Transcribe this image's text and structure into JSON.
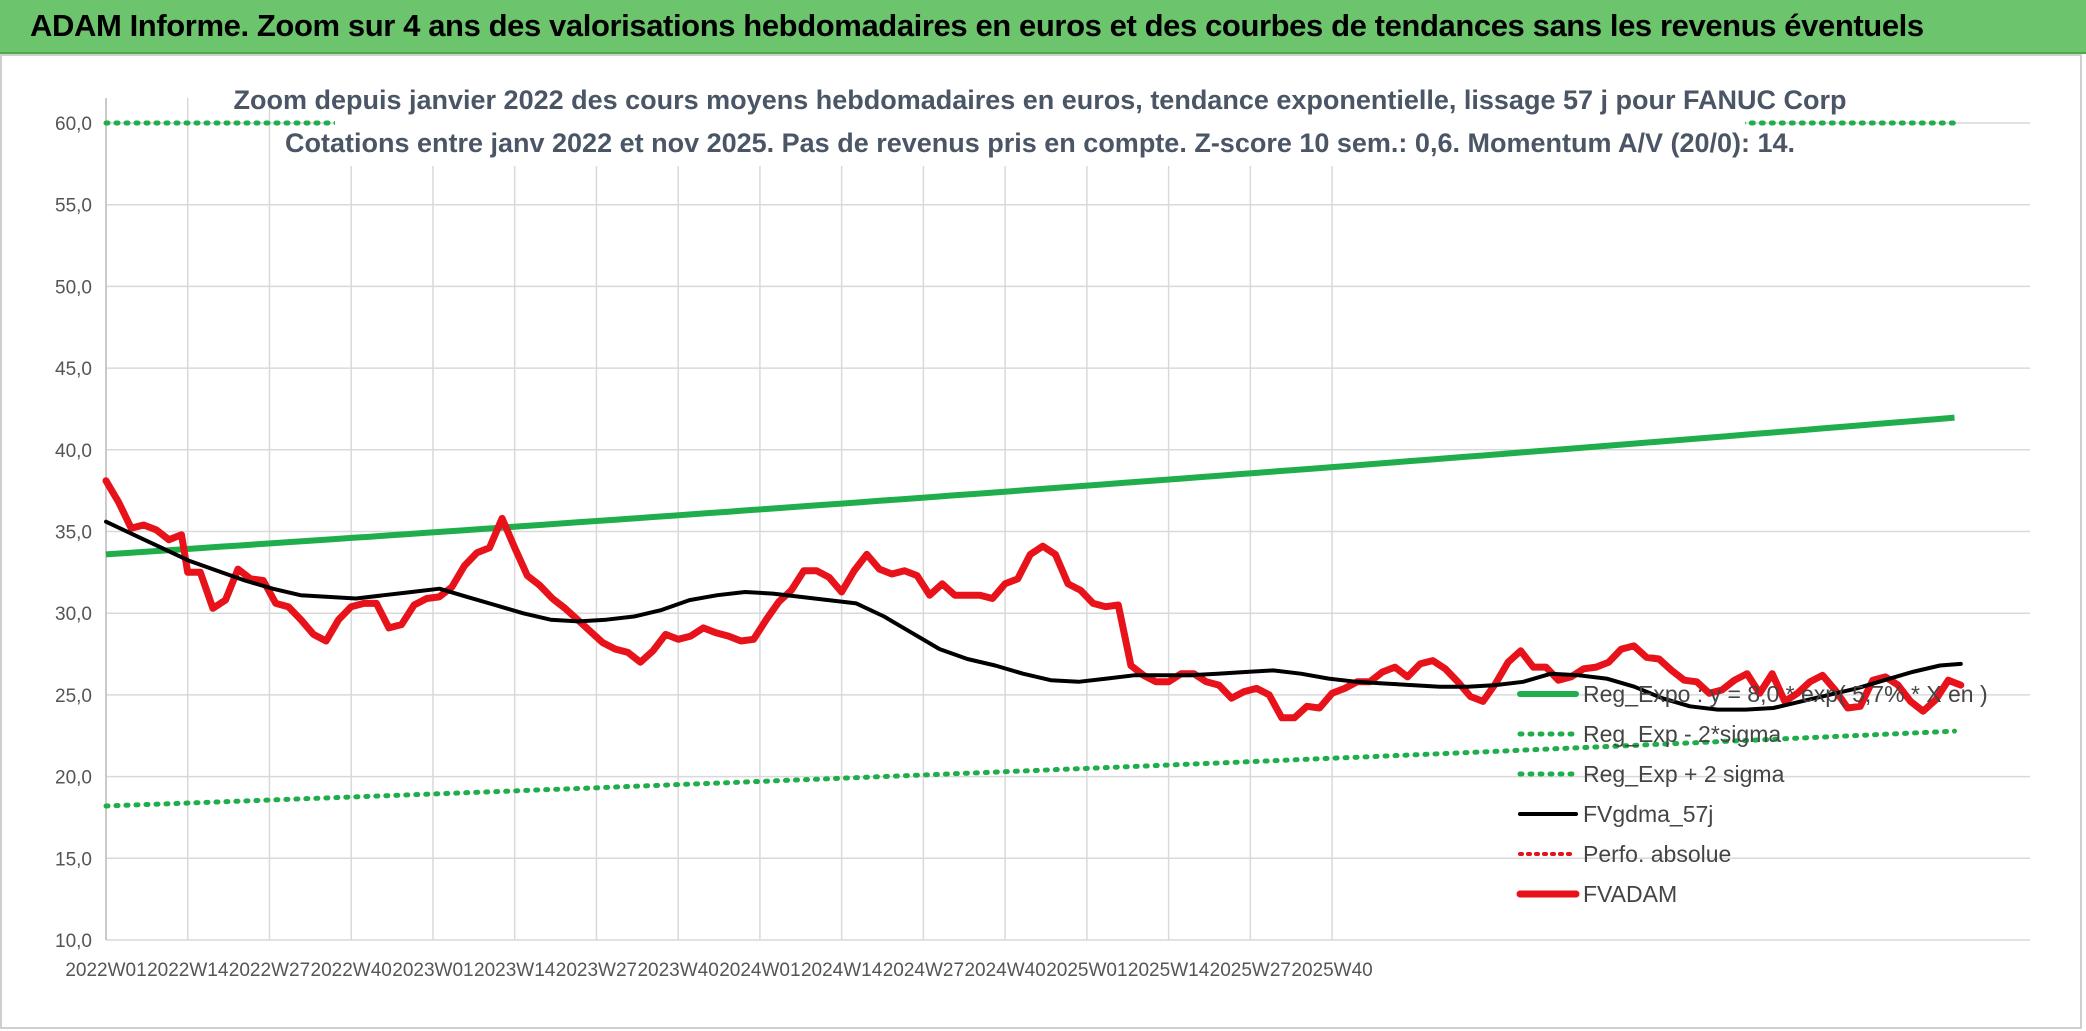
{
  "header": {
    "title": "ADAM Informe. Zoom sur 4 ans des valorisations hebdomadaires en euros et des courbes de tendances sans les revenus éventuels"
  },
  "colors": {
    "banner": "#6cc46c",
    "reg_expo": "#1fae4b",
    "reg_sigma": "#1fae4b",
    "fvgdma": "#000000",
    "perfo": "#e0141e",
    "fvadam": "#e8121a",
    "grid": "#d9d9d9"
  },
  "chart_data": {
    "type": "line",
    "title_lines": [
      "Zoom depuis janvier 2022 des cours moyens hebdomadaires en euros, tendance exponentielle, lissage 57 j pour FANUC Corp",
      "Cotations entre janv 2022 et nov 2025. Pas de revenus pris en compte. Z-score 10 sem.: 0,6. Momentum A/V (20/0): 14."
    ],
    "ylim": [
      10,
      60
    ],
    "y_ticks": [
      "10,0",
      "15,0",
      "20,0",
      "25,0",
      "30,0",
      "35,0",
      "40,0",
      "45,0",
      "50,0",
      "55,0",
      "60,0"
    ],
    "x_ticks": [
      "2022W01",
      "2022W14",
      "2022W27",
      "2022W40",
      "2023W01",
      "2023W14",
      "2023W27",
      "2023W40",
      "2024W01",
      "2024W14",
      "2024W27",
      "2024W40",
      "2025W01",
      "2025W14",
      "2025W27",
      "2025W40"
    ],
    "week_count": 206,
    "legend": [
      {
        "key": "reg_expo",
        "label": "Reg_Expo : y = 8,0 * exp( 5,7% * X en )",
        "style": "solid-thick"
      },
      {
        "key": "reg_minus",
        "label": "Reg_Exp - 2*sigma",
        "style": "dotted-green"
      },
      {
        "key": "reg_plus",
        "label": "Reg_Exp + 2 sigma",
        "style": "dotted-green"
      },
      {
        "key": "fvgdma",
        "label": "FVgdma_57j",
        "style": "solid-black"
      },
      {
        "key": "perfo",
        "label": "Perfo. absolue",
        "style": "dotted-red"
      },
      {
        "key": "fvadam",
        "label": "FVADAM",
        "style": "solid-red"
      }
    ],
    "series": [
      {
        "name": "Reg_Expo",
        "start": 33.6,
        "end": 42.0
      },
      {
        "name": "Reg_Exp - 2*sigma",
        "start": 18.2,
        "end": 22.8
      },
      {
        "name": "Reg_Exp + 2 sigma",
        "start": 60.0,
        "end": 60.0
      },
      {
        "name": "FVgdma_57j",
        "points": [
          [
            0,
            35.6
          ],
          [
            4,
            34.8
          ],
          [
            8,
            34.0
          ],
          [
            12,
            33.2
          ],
          [
            16,
            32.6
          ],
          [
            20,
            32.0
          ],
          [
            24,
            31.5
          ],
          [
            28,
            31.1
          ],
          [
            32,
            31.0
          ],
          [
            36,
            30.9
          ],
          [
            40,
            31.1
          ],
          [
            44,
            31.3
          ],
          [
            48,
            31.5
          ],
          [
            52,
            31.0
          ],
          [
            56,
            30.5
          ],
          [
            60,
            30.0
          ],
          [
            64,
            29.6
          ],
          [
            68,
            29.5
          ],
          [
            72,
            29.6
          ],
          [
            76,
            29.8
          ],
          [
            80,
            30.2
          ],
          [
            84,
            30.8
          ],
          [
            88,
            31.1
          ],
          [
            92,
            31.3
          ],
          [
            96,
            31.2
          ],
          [
            100,
            31.0
          ],
          [
            104,
            30.8
          ],
          [
            108,
            30.6
          ],
          [
            112,
            29.8
          ],
          [
            116,
            28.8
          ],
          [
            120,
            27.8
          ],
          [
            124,
            27.2
          ],
          [
            128,
            26.8
          ],
          [
            132,
            26.3
          ],
          [
            136,
            25.9
          ],
          [
            140,
            25.8
          ],
          [
            144,
            26.0
          ],
          [
            148,
            26.2
          ],
          [
            152,
            26.2
          ],
          [
            156,
            26.2
          ],
          [
            160,
            26.3
          ],
          [
            164,
            26.4
          ],
          [
            168,
            26.5
          ],
          [
            172,
            26.3
          ],
          [
            176,
            26.0
          ],
          [
            180,
            25.8
          ],
          [
            184,
            25.7
          ],
          [
            188,
            25.6
          ],
          [
            192,
            25.5
          ],
          [
            196,
            25.5
          ],
          [
            200,
            25.6
          ],
          [
            204,
            25.8
          ],
          [
            208,
            26.3
          ],
          [
            212,
            26.2
          ],
          [
            216,
            26.0
          ],
          [
            220,
            25.5
          ],
          [
            224,
            24.8
          ],
          [
            228,
            24.3
          ],
          [
            232,
            24.1
          ],
          [
            236,
            24.1
          ],
          [
            240,
            24.2
          ],
          [
            244,
            24.6
          ],
          [
            248,
            25.0
          ],
          [
            252,
            25.4
          ],
          [
            256,
            25.9
          ],
          [
            260,
            26.4
          ],
          [
            264,
            26.8
          ],
          [
            267,
            26.9
          ]
        ]
      },
      {
        "name": "Perfo. absolue",
        "points": []
      },
      {
        "name": "FVADAM",
        "points": [
          [
            0,
            38.1
          ],
          [
            2,
            36.8
          ],
          [
            4,
            35.2
          ],
          [
            6,
            35.4
          ],
          [
            8,
            35.1
          ],
          [
            10,
            34.5
          ],
          [
            12,
            34.8
          ],
          [
            13,
            32.5
          ],
          [
            15,
            32.5
          ],
          [
            17,
            30.3
          ],
          [
            19,
            30.8
          ],
          [
            21,
            32.7
          ],
          [
            23,
            32.1
          ],
          [
            25,
            32.0
          ],
          [
            27,
            30.6
          ],
          [
            29,
            30.4
          ],
          [
            31,
            29.6
          ],
          [
            33,
            28.7
          ],
          [
            35,
            28.3
          ],
          [
            37,
            29.6
          ],
          [
            39,
            30.4
          ],
          [
            41,
            30.6
          ],
          [
            43,
            30.6
          ],
          [
            45,
            29.1
          ],
          [
            47,
            29.3
          ],
          [
            49,
            30.5
          ],
          [
            51,
            30.9
          ],
          [
            53,
            31.0
          ],
          [
            55,
            31.6
          ],
          [
            57,
            32.9
          ],
          [
            59,
            33.7
          ],
          [
            61,
            34.0
          ],
          [
            63,
            35.8
          ],
          [
            65,
            34.0
          ],
          [
            67,
            32.3
          ],
          [
            69,
            31.7
          ],
          [
            71,
            30.9
          ],
          [
            73,
            30.3
          ],
          [
            75,
            29.6
          ],
          [
            77,
            28.9
          ],
          [
            79,
            28.2
          ],
          [
            81,
            27.8
          ],
          [
            83,
            27.6
          ],
          [
            85,
            27.0
          ],
          [
            87,
            27.7
          ],
          [
            89,
            28.7
          ],
          [
            91,
            28.4
          ],
          [
            93,
            28.6
          ],
          [
            95,
            29.1
          ],
          [
            97,
            28.8
          ],
          [
            99,
            28.6
          ],
          [
            101,
            28.3
          ],
          [
            103,
            28.4
          ],
          [
            105,
            29.6
          ],
          [
            107,
            30.7
          ],
          [
            109,
            31.4
          ],
          [
            111,
            32.6
          ],
          [
            113,
            32.6
          ],
          [
            115,
            32.2
          ],
          [
            117,
            31.3
          ],
          [
            119,
            32.6
          ],
          [
            121,
            33.6
          ],
          [
            123,
            32.7
          ],
          [
            125,
            32.4
          ],
          [
            127,
            32.6
          ],
          [
            129,
            32.3
          ],
          [
            131,
            31.1
          ],
          [
            133,
            31.8
          ],
          [
            135,
            31.1
          ],
          [
            137,
            31.1
          ],
          [
            139,
            31.1
          ],
          [
            141,
            30.9
          ],
          [
            143,
            31.8
          ],
          [
            145,
            32.1
          ],
          [
            147,
            33.6
          ],
          [
            149,
            34.1
          ],
          [
            151,
            33.6
          ],
          [
            153,
            31.8
          ],
          [
            155,
            31.4
          ],
          [
            157,
            30.6
          ],
          [
            159,
            30.4
          ],
          [
            161,
            30.5
          ],
          [
            163,
            26.8
          ],
          [
            165,
            26.2
          ],
          [
            167,
            25.8
          ],
          [
            169,
            25.8
          ],
          [
            171,
            26.3
          ],
          [
            173,
            26.3
          ],
          [
            175,
            25.8
          ],
          [
            177,
            25.6
          ],
          [
            179,
            24.8
          ],
          [
            181,
            25.2
          ],
          [
            183,
            25.4
          ],
          [
            185,
            25.0
          ],
          [
            187,
            23.6
          ],
          [
            189,
            23.6
          ],
          [
            191,
            24.3
          ],
          [
            193,
            24.2
          ],
          [
            195,
            25.1
          ],
          [
            197,
            25.4
          ],
          [
            199,
            25.8
          ],
          [
            201,
            25.8
          ],
          [
            203,
            26.4
          ],
          [
            205,
            26.7
          ],
          [
            207,
            26.1
          ],
          [
            209,
            26.9
          ],
          [
            211,
            27.1
          ],
          [
            213,
            26.6
          ],
          [
            215,
            25.8
          ],
          [
            217,
            24.9
          ],
          [
            219,
            24.6
          ],
          [
            221,
            25.7
          ],
          [
            223,
            27.0
          ],
          [
            225,
            27.7
          ],
          [
            227,
            26.7
          ],
          [
            229,
            26.7
          ],
          [
            231,
            25.9
          ],
          [
            233,
            26.1
          ],
          [
            235,
            26.6
          ],
          [
            237,
            26.7
          ],
          [
            239,
            27.0
          ],
          [
            241,
            27.8
          ],
          [
            243,
            28.0
          ],
          [
            245,
            27.3
          ],
          [
            247,
            27.2
          ],
          [
            249,
            26.5
          ],
          [
            251,
            25.9
          ],
          [
            253,
            25.8
          ],
          [
            255,
            25.1
          ],
          [
            257,
            25.3
          ],
          [
            259,
            25.9
          ],
          [
            261,
            26.3
          ],
          [
            263,
            25.1
          ],
          [
            265,
            26.3
          ],
          [
            267,
            24.6
          ],
          [
            269,
            25.1
          ],
          [
            271,
            25.8
          ],
          [
            273,
            26.2
          ],
          [
            275,
            25.3
          ],
          [
            277,
            24.2
          ],
          [
            279,
            24.3
          ],
          [
            281,
            25.9
          ],
          [
            283,
            26.1
          ],
          [
            285,
            25.6
          ],
          [
            287,
            24.6
          ],
          [
            289,
            24.0
          ],
          [
            291,
            24.7
          ],
          [
            293,
            25.9
          ],
          [
            295,
            25.6
          ]
        ]
      }
    ]
  }
}
